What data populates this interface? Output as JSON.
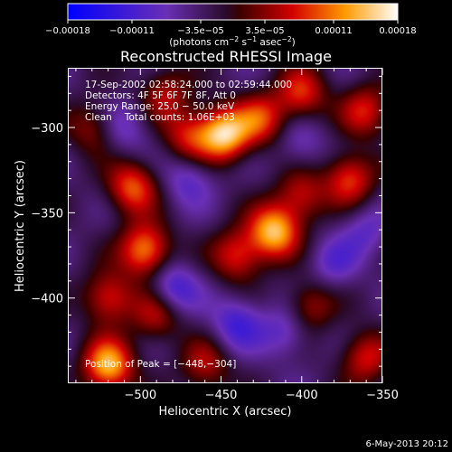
{
  "chart_data": {
    "type": "heatmap",
    "title": "Reconstructed RHESSI Image",
    "xlabel": "Heliocentric X (arcsec)",
    "ylabel": "Heliocentric Y (arcsec)",
    "xlim": [
      -545,
      -350
    ],
    "ylim": [
      -450,
      -265
    ],
    "xticks": [
      -500,
      -450,
      -400,
      -350
    ],
    "xtick_labels": [
      "−500",
      "−450",
      "−400",
      "−350"
    ],
    "yticks": [
      -300,
      -350,
      -400
    ],
    "ytick_labels": [
      "−300",
      "−350",
      "−400"
    ],
    "colorbar": {
      "range": [
        -0.00018,
        0.00018
      ],
      "ticks": [
        -0.00018,
        -0.00011,
        -3.5e-05,
        3.5e-05,
        0.00011,
        0.00018
      ],
      "tick_labels": [
        "−0.00018",
        "−0.00011",
        "−3.5e−05",
        "3.5e−05",
        "0.00011",
        "0.00018"
      ],
      "unit_main": "(photons cm",
      "unit_sup1": "−2",
      "unit_mid": " s",
      "unit_sup2": "−1",
      "unit_end": " asec",
      "unit_sup3": "−2",
      "unit_close": ")"
    },
    "annotations": {
      "time_range": "17-Sep-2002 02:58:24.000 to 02:59:44.000",
      "detectors": "Detectors: 4F 5F 6F 7F 8F, Att 0",
      "energy_range": "Energy Range: 25.0 − 50.0 keV",
      "method": "Clean",
      "total_counts": "Total counts: 1.06E+03",
      "peak_position": "Position of Peak = [−448,−304]"
    },
    "peak": [
      -448,
      -304
    ],
    "sources": [
      {
        "x": -448,
        "y": -304,
        "amp": 1.0
      },
      {
        "x": -417,
        "y": -361,
        "amp": 0.95
      },
      {
        "x": -497,
        "y": -372,
        "amp": 0.85
      },
      {
        "x": -520,
        "y": -440,
        "amp": 0.95
      },
      {
        "x": -470,
        "y": -305,
        "amp": 0.55
      },
      {
        "x": -425,
        "y": -295,
        "amp": 0.6
      },
      {
        "x": -400,
        "y": -280,
        "amp": 0.6
      },
      {
        "x": -360,
        "y": -290,
        "amp": 0.55
      },
      {
        "x": -370,
        "y": -330,
        "amp": 0.65
      },
      {
        "x": -440,
        "y": -375,
        "amp": 0.6
      },
      {
        "x": -505,
        "y": -335,
        "amp": 0.7
      },
      {
        "x": -530,
        "y": -300,
        "amp": 0.4
      },
      {
        "x": -490,
        "y": -410,
        "amp": 0.5
      },
      {
        "x": -400,
        "y": -340,
        "amp": 0.5
      },
      {
        "x": -360,
        "y": -435,
        "amp": 0.55
      },
      {
        "x": -460,
        "y": -440,
        "amp": 0.45
      },
      {
        "x": -395,
        "y": -405,
        "amp": 0.45
      },
      {
        "x": -485,
        "y": -280,
        "amp": 0.45
      },
      {
        "x": -520,
        "y": -400,
        "amp": 0.6
      },
      {
        "x": -480,
        "y": -395,
        "amp": -0.5
      },
      {
        "x": -440,
        "y": -415,
        "amp": -0.45
      },
      {
        "x": -410,
        "y": -420,
        "amp": -0.35
      },
      {
        "x": -380,
        "y": -380,
        "amp": -0.3
      },
      {
        "x": -470,
        "y": -330,
        "amp": -0.35
      },
      {
        "x": -510,
        "y": -300,
        "amp": -0.3
      },
      {
        "x": -400,
        "y": -310,
        "amp": -0.25
      },
      {
        "x": -360,
        "y": -360,
        "amp": -0.3
      }
    ]
  },
  "footer": {
    "timestamp": "6-May-2013 20:12"
  }
}
